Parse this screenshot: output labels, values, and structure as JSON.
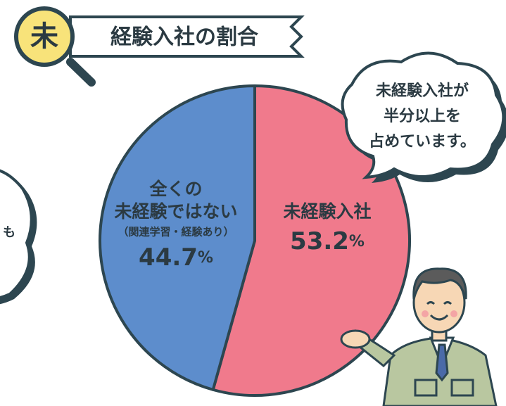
{
  "chart_data": {
    "type": "pie",
    "title_badge": "未",
    "title": "経験入社の割合",
    "categories": [
      [
        "未経験入社"
      ],
      [
        "全くの",
        "未経験ではない"
      ]
    ],
    "note": "（関連学習・経験あり）",
    "values": [
      53.2,
      44.7
    ],
    "unit": "%",
    "colors": [
      "#f07a8c",
      "#5d8dcc"
    ],
    "annotation": [
      "未経験入社が",
      "半分以上を",
      "占めています。"
    ],
    "side_text": "も"
  }
}
